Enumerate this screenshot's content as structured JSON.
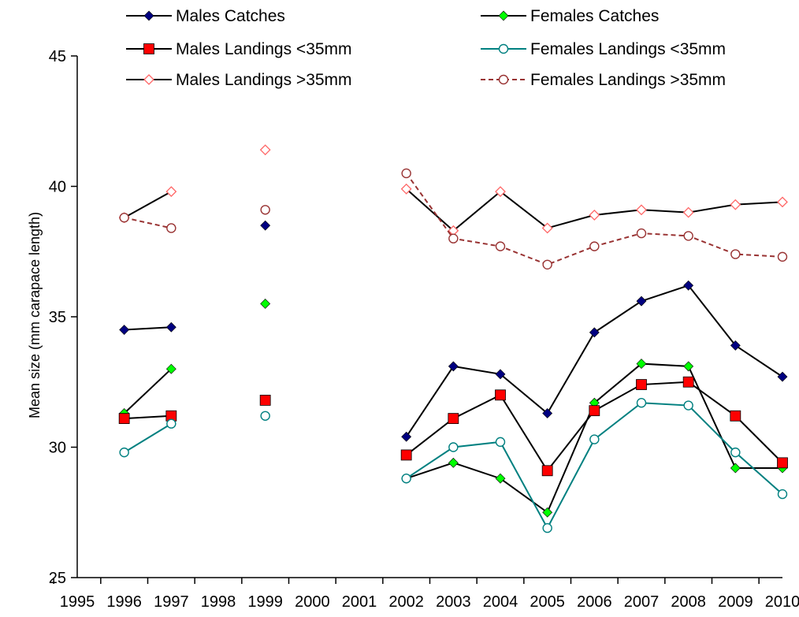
{
  "chart_data": {
    "type": "line",
    "title": "",
    "xlabel": "",
    "ylabel": "Mean size (mm carapace length)",
    "x": [
      1995,
      1996,
      1997,
      1998,
      1999,
      2000,
      2001,
      2002,
      2003,
      2004,
      2005,
      2006,
      2007,
      2008,
      2009,
      2010
    ],
    "xlim": [
      1995,
      2010
    ],
    "ylim": [
      25,
      45
    ],
    "yticks": [
      25,
      30,
      35,
      40,
      45
    ],
    "grid": false,
    "legend_position": "top",
    "series": [
      {
        "name": "Males Catches",
        "color": "#000080",
        "line_color": "#000000",
        "line_style": "solid",
        "marker": "diamond-filled",
        "points": [
          [
            1996,
            34.5
          ],
          [
            1997,
            34.6
          ],
          [
            1999,
            38.5
          ],
          [
            2002,
            30.4
          ],
          [
            2003,
            33.1
          ],
          [
            2004,
            32.8
          ],
          [
            2005,
            31.3
          ],
          [
            2006,
            34.4
          ],
          [
            2007,
            35.6
          ],
          [
            2008,
            36.2
          ],
          [
            2009,
            33.9
          ],
          [
            2010,
            32.7
          ]
        ]
      },
      {
        "name": "Females Catches",
        "color": "#00ff00",
        "line_color": "#000000",
        "line_style": "solid",
        "marker": "diamond-filled",
        "points": [
          [
            1996,
            31.3
          ],
          [
            1997,
            33.0
          ],
          [
            1999,
            35.5
          ],
          [
            2002,
            28.8
          ],
          [
            2003,
            29.4
          ],
          [
            2004,
            28.8
          ],
          [
            2005,
            27.5
          ],
          [
            2006,
            31.7
          ],
          [
            2007,
            33.2
          ],
          [
            2008,
            33.1
          ],
          [
            2009,
            29.2
          ],
          [
            2010,
            29.2
          ]
        ]
      },
      {
        "name": "Males Landings <35mm",
        "color": "#ff0000",
        "line_color": "#000000",
        "line_style": "solid",
        "marker": "square-filled",
        "points": [
          [
            1996,
            31.1
          ],
          [
            1997,
            31.2
          ],
          [
            1999,
            31.8
          ],
          [
            2002,
            29.7
          ],
          [
            2003,
            31.1
          ],
          [
            2004,
            32.0
          ],
          [
            2005,
            29.1
          ],
          [
            2006,
            31.4
          ],
          [
            2007,
            32.4
          ],
          [
            2008,
            32.5
          ],
          [
            2009,
            31.2
          ],
          [
            2010,
            29.4
          ]
        ]
      },
      {
        "name": "Females Landings <35mm",
        "color": "#008080",
        "line_color": "#008080",
        "line_style": "solid",
        "marker": "circle-open",
        "points": [
          [
            1996,
            29.8
          ],
          [
            1997,
            30.9
          ],
          [
            1999,
            31.2
          ],
          [
            2002,
            28.8
          ],
          [
            2003,
            30.0
          ],
          [
            2004,
            30.2
          ],
          [
            2005,
            26.9
          ],
          [
            2006,
            30.3
          ],
          [
            2007,
            31.7
          ],
          [
            2008,
            31.6
          ],
          [
            2009,
            29.8
          ],
          [
            2010,
            28.2
          ]
        ]
      },
      {
        "name": "Males  Landings >35mm",
        "color": "#ff6666",
        "line_color": "#000000",
        "line_style": "solid",
        "marker": "diamond-open",
        "points": [
          [
            1996,
            38.8
          ],
          [
            1997,
            39.8
          ],
          [
            1999,
            41.4
          ],
          [
            2002,
            39.9
          ],
          [
            2003,
            38.3
          ],
          [
            2004,
            39.8
          ],
          [
            2005,
            38.4
          ],
          [
            2006,
            38.9
          ],
          [
            2007,
            39.1
          ],
          [
            2008,
            39.0
          ],
          [
            2009,
            39.3
          ],
          [
            2010,
            39.4
          ]
        ]
      },
      {
        "name": "Females  Landings >35mm",
        "color": "#993333",
        "line_color": "#993333",
        "line_style": "dashed",
        "marker": "circle-open",
        "points": [
          [
            1996,
            38.8
          ],
          [
            1997,
            38.4
          ],
          [
            1999,
            39.1
          ],
          [
            2002,
            40.5
          ],
          [
            2003,
            38.0
          ],
          [
            2004,
            37.7
          ],
          [
            2005,
            37.0
          ],
          [
            2006,
            37.7
          ],
          [
            2007,
            38.2
          ],
          [
            2008,
            38.1
          ],
          [
            2009,
            37.4
          ],
          [
            2010,
            37.3
          ]
        ]
      }
    ]
  }
}
